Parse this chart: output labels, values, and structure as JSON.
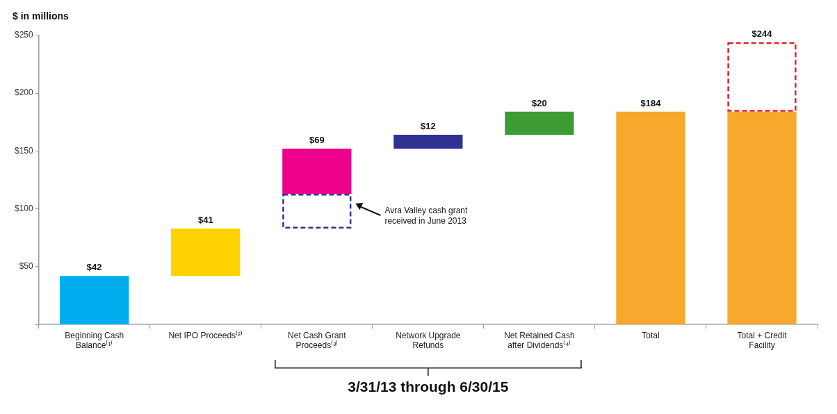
{
  "chart_data": {
    "type": "bar",
    "title": "$ in millions",
    "categories": [
      "Beginning Cash Balance⁽¹⁾",
      "Net IPO Proceeds⁽²⁾",
      "Net Cash Grant Proceeds⁽³⁾",
      "Network Upgrade Refunds",
      "Net Retained Cash after Dividends⁽⁴⁾",
      "Total",
      "Total + Credit Facility"
    ],
    "series": [
      {
        "values": [
          42,
          41,
          39,
          12,
          20,
          184,
          184
        ],
        "base": [
          0,
          42,
          113,
          152,
          164,
          0,
          0
        ],
        "colors": [
          "#00aeef",
          "#ffd200",
          "#ec008c",
          "#2e3192",
          "#3c9b35",
          "#f7a92e",
          "#f7a92e"
        ],
        "value_labels": [
          "$42",
          "$41",
          null,
          "$12",
          "$20",
          "$184",
          null
        ]
      },
      {
        "values": [
          null,
          null,
          30,
          null,
          null,
          null,
          60
        ],
        "base": [
          null,
          null,
          83,
          null,
          null,
          null,
          184
        ],
        "colors": [
          "#2e3192",
          "#2e3192",
          "#2e3192",
          "#2e3192",
          "#2e3192",
          "#2e3192",
          "#e0202a"
        ],
        "line_style": "dashed"
      }
    ],
    "totals": [
      null,
      null,
      "$69",
      null,
      null,
      null,
      "$244"
    ],
    "ylim": [
      0,
      250
    ],
    "yticks": [
      {
        "value": 0,
        "label": null
      },
      {
        "value": 50,
        "label": "$50"
      },
      {
        "value": 100,
        "label": "$100"
      },
      {
        "value": 150,
        "label": "$150"
      },
      {
        "value": 200,
        "label": "$200"
      },
      {
        "value": 250,
        "label": "$250"
      }
    ],
    "grid": false,
    "legend": false,
    "annotations": [
      "Avra Valley cash grant received in June 2013",
      "3/31/13 through 6/30/15"
    ]
  }
}
